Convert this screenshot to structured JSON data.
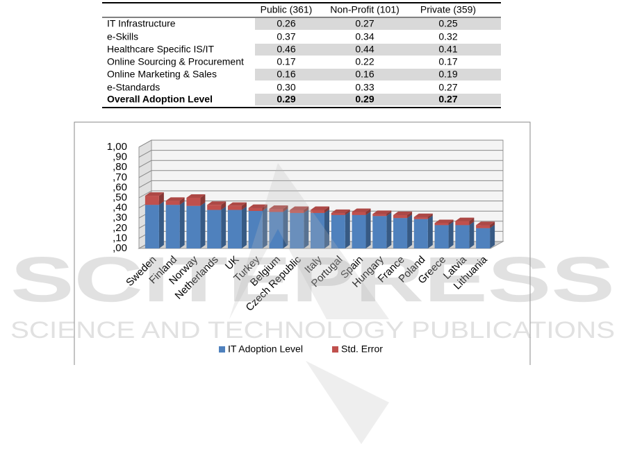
{
  "table": {
    "columns": [
      "Public (361)",
      "Non-Profit (101)",
      "Private (359)"
    ],
    "rows": [
      {
        "label": "IT Infrastructure",
        "values": [
          "0.26",
          "0.27",
          "0.25"
        ]
      },
      {
        "label": "e-Skills",
        "values": [
          "0.37",
          "0.34",
          "0.32"
        ]
      },
      {
        "label": "Healthcare Specific IS/IT",
        "values": [
          "0.46",
          "0.44",
          "0.41"
        ]
      },
      {
        "label": "Online Sourcing & Procurement",
        "values": [
          "0.17",
          "0.22",
          "0.17"
        ]
      },
      {
        "label": "Online Marketing & Sales",
        "values": [
          "0.16",
          "0.16",
          "0.19"
        ]
      },
      {
        "label": "e-Standards",
        "values": [
          "0.30",
          "0.33",
          "0.27"
        ]
      },
      {
        "label": "Overall Adoption Level",
        "values": [
          "0.29",
          "0.29",
          "0.27"
        ]
      }
    ]
  },
  "chart_data": {
    "type": "stacked_bar_3d",
    "categories": [
      "Sweden",
      "Finland",
      "Norway",
      "Netherlands",
      "UK",
      "Turkey",
      "Belgium",
      "Czech Republic",
      "Italy",
      "Portugal",
      "Spain",
      "Hungary",
      "France",
      "Poland",
      "Greece",
      "Latvia",
      "Lithuania"
    ],
    "series": [
      {
        "name": "IT Adoption Level",
        "color": "#4f81bd",
        "values": [
          0.43,
          0.43,
          0.42,
          0.38,
          0.38,
          0.37,
          0.36,
          0.35,
          0.35,
          0.33,
          0.33,
          0.32,
          0.3,
          0.29,
          0.23,
          0.23,
          0.2
        ]
      },
      {
        "name": "Std. Error",
        "color": "#c0504d",
        "values": [
          0.09,
          0.04,
          0.08,
          0.05,
          0.04,
          0.03,
          0.03,
          0.03,
          0.03,
          0.02,
          0.03,
          0.02,
          0.03,
          0.02,
          0.02,
          0.04,
          0.03
        ]
      }
    ],
    "ylim": [
      0,
      1
    ],
    "yticks": [
      {
        "value": 0,
        "label": ",00"
      },
      {
        "value": 0.1,
        "label": ",10"
      },
      {
        "value": 0.2,
        "label": ",20"
      },
      {
        "value": 0.3,
        "label": ",30"
      },
      {
        "value": 0.4,
        "label": ",40"
      },
      {
        "value": 0.5,
        "label": ",50"
      },
      {
        "value": 0.6,
        "label": ",60"
      },
      {
        "value": 0.7,
        "label": ",70"
      },
      {
        "value": 0.8,
        "label": ",80"
      },
      {
        "value": 0.9,
        "label": ",90"
      },
      {
        "value": 1,
        "label": "1,00"
      }
    ],
    "grid": true,
    "legend": "bottom"
  },
  "watermark": {
    "title": "SCITEPRESS",
    "subtitle": "SCIENCE AND TECHNOLOGY PUBLICATIONS"
  }
}
